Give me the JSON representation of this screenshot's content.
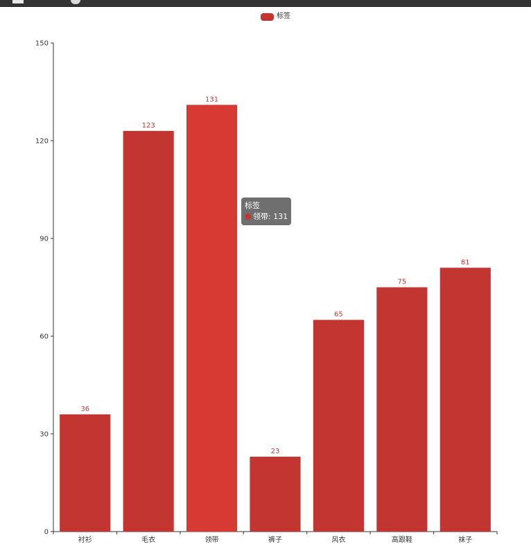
{
  "colors": {
    "bar": "#c23531",
    "bar_emphasis": "#d73a33",
    "axis": "#333333",
    "tooltip_bg": "#323232"
  },
  "legend": {
    "label": "标签"
  },
  "tooltip": {
    "series_name": "标签",
    "item_text": "领带: 131"
  },
  "chart_data": {
    "type": "bar",
    "categories": [
      "衬衫",
      "毛衣",
      "领带",
      "裤子",
      "风衣",
      "高跟鞋",
      "袜子"
    ],
    "series": [
      {
        "name": "标签",
        "values": [
          36,
          123,
          131,
          23,
          65,
          75,
          81
        ]
      }
    ],
    "ylim": [
      0,
      150
    ],
    "yticks": [
      0,
      30,
      60,
      90,
      120,
      150
    ],
    "data_labels": true,
    "legend_position": "top-center",
    "grid": false,
    "highlighted_category": "领带"
  }
}
